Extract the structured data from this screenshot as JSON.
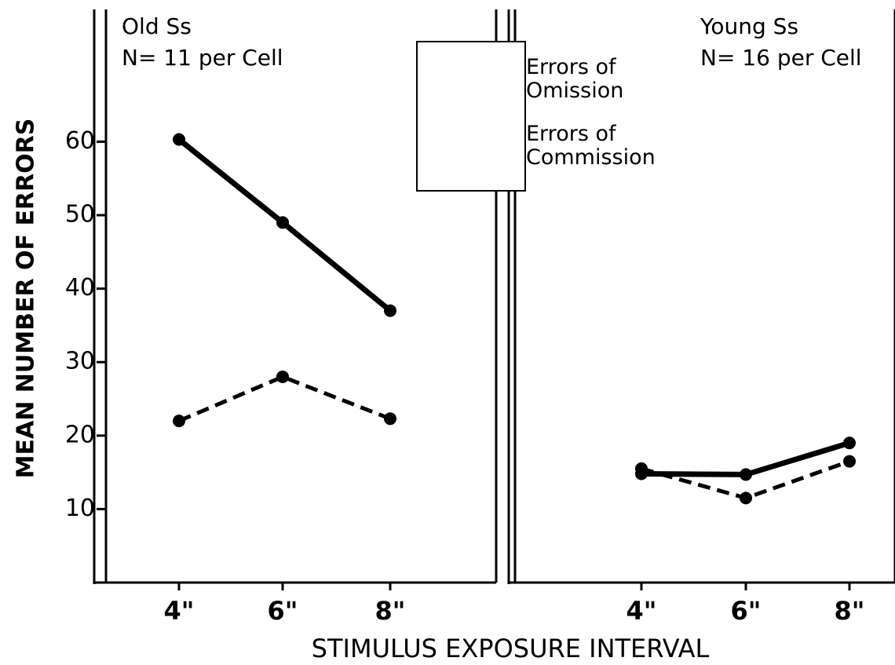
{
  "xlabel": "STIMULUS EXPOSURE INTERVAL",
  "ylabel": "MEAN NUMBER OF ERRORS",
  "chart_data": [
    {
      "type": "line",
      "annotations": [
        "Old Ss",
        "N= 11 per Cell"
      ],
      "categories": [
        "4\"",
        "6\"",
        "8\""
      ],
      "series": [
        {
          "name": "Errors of Omission",
          "color": "#000000",
          "line_style": "solid",
          "values": [
            60.3,
            49,
            37
          ]
        },
        {
          "name": "Errors of Commission",
          "color": "#000000",
          "line_style": "dashed",
          "values": [
            22,
            28,
            22.3
          ]
        }
      ],
      "ylim": [
        0,
        78
      ],
      "yticks": [
        10,
        20,
        30,
        40,
        50,
        60
      ]
    },
    {
      "type": "line",
      "annotations": [
        "Young Ss",
        "N= 16 per Cell"
      ],
      "categories": [
        "4\"",
        "6\"",
        "8\""
      ],
      "series": [
        {
          "name": "Errors of Omission",
          "color": "#000000",
          "line_style": "solid",
          "values": [
            14.8,
            14.7,
            19
          ]
        },
        {
          "name": "Errors of Commission",
          "color": "#000000",
          "line_style": "dashed",
          "values": [
            15.5,
            11.5,
            16.5
          ]
        }
      ],
      "ylim": [
        0,
        78
      ],
      "yticks": []
    }
  ]
}
